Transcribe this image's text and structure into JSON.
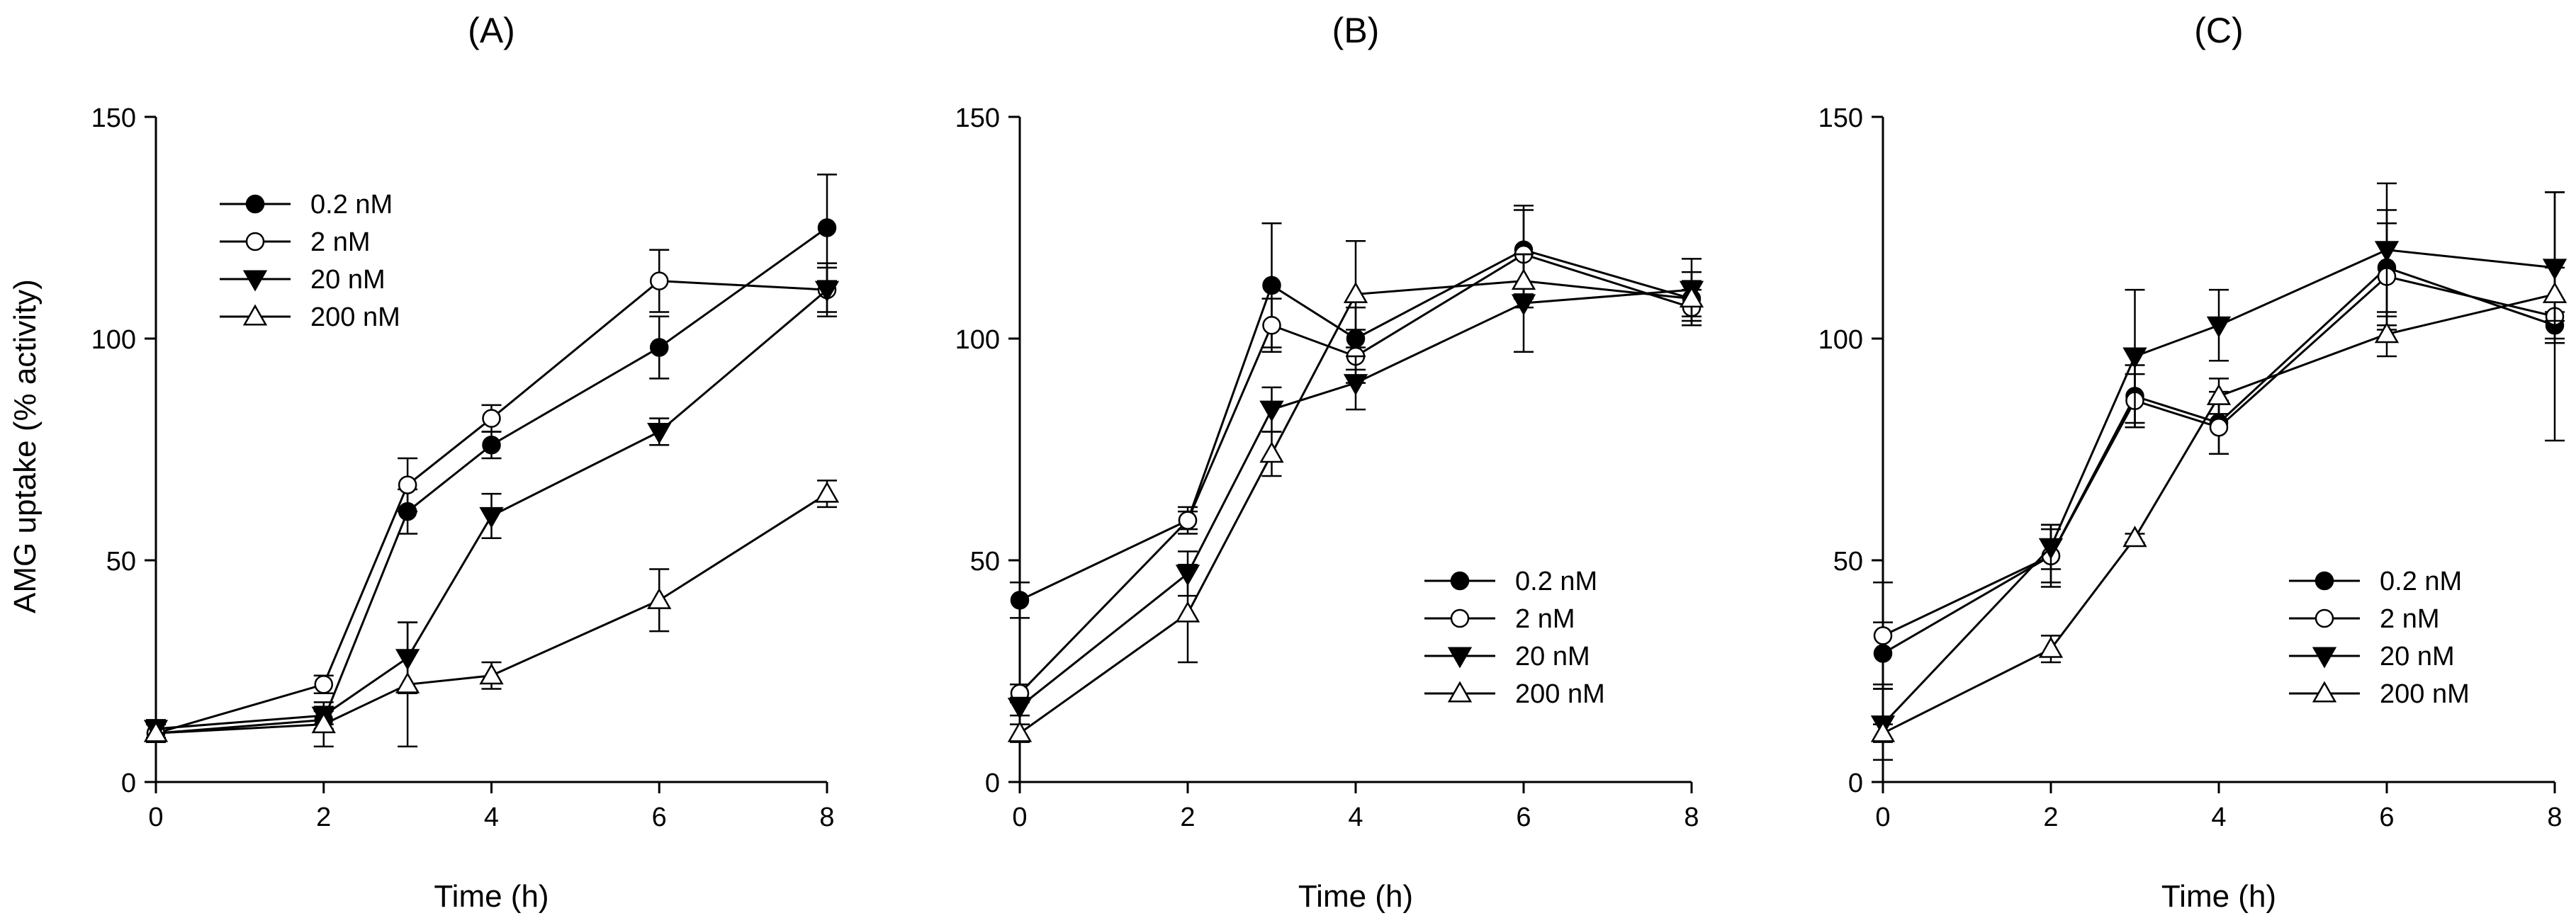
{
  "figure": {
    "ylabel": "AMG uptake (% activity)"
  },
  "chart_data": [
    {
      "type": "line",
      "title": "(A)",
      "xlabel": "Time (h)",
      "ylabel": "AMG uptake (% activity)",
      "xlim": [
        0,
        8
      ],
      "ylim": [
        0,
        150
      ],
      "xticks": [
        0,
        2,
        4,
        6,
        8
      ],
      "yticks": [
        0,
        50,
        100,
        150
      ],
      "legend_position": "top-left",
      "x": [
        0,
        2,
        3,
        4,
        6,
        8
      ],
      "series": [
        {
          "name": "0.2 nM",
          "marker": "filled-circle",
          "values": [
            11,
            14,
            61,
            76,
            98,
            125
          ],
          "errors": [
            2,
            2,
            5,
            3,
            7,
            12
          ]
        },
        {
          "name": "2 nM",
          "marker": "open-circle",
          "values": [
            11,
            22,
            67,
            82,
            113,
            111
          ],
          "errors": [
            2,
            2,
            6,
            3,
            7,
            6
          ]
        },
        {
          "name": "20 nM",
          "marker": "filled-triangle-down",
          "values": [
            12,
            15,
            28,
            60,
            79,
            111
          ],
          "errors": [
            2,
            2,
            8,
            5,
            3,
            5
          ]
        },
        {
          "name": "200 nM",
          "marker": "open-triangle-up",
          "values": [
            11,
            13,
            22,
            24,
            41,
            65
          ],
          "errors": [
            2,
            5,
            14,
            3,
            7,
            3
          ]
        }
      ]
    },
    {
      "type": "line",
      "title": "(B)",
      "xlabel": "Time (h)",
      "ylabel": "",
      "xlim": [
        0,
        8
      ],
      "ylim": [
        0,
        150
      ],
      "xticks": [
        0,
        2,
        4,
        6,
        8
      ],
      "yticks": [
        0,
        50,
        100,
        150
      ],
      "legend_position": "bottom-right",
      "x": [
        0,
        2,
        3,
        4,
        6,
        8
      ],
      "series": [
        {
          "name": "0.2 nM",
          "marker": "filled-circle",
          "values": [
            41,
            59,
            112,
            100,
            120,
            109
          ],
          "errors": [
            4,
            3,
            14,
            7,
            10,
            4
          ]
        },
        {
          "name": "2 nM",
          "marker": "open-circle",
          "values": [
            20,
            59,
            103,
            96,
            119,
            107
          ],
          "errors": [
            2,
            2,
            6,
            6,
            10,
            4
          ]
        },
        {
          "name": "20 nM",
          "marker": "filled-triangle-down",
          "values": [
            17,
            47,
            84,
            90,
            108,
            111
          ],
          "errors": [
            2,
            5,
            5,
            6,
            11,
            7
          ]
        },
        {
          "name": "200 nM",
          "marker": "open-triangle-up",
          "values": [
            11,
            38,
            74,
            110,
            113,
            109
          ],
          "errors": [
            2,
            11,
            5,
            12,
            6,
            6
          ]
        }
      ]
    },
    {
      "type": "line",
      "title": "(C)",
      "xlabel": "Time (h)",
      "ylabel": "",
      "xlim": [
        0,
        8
      ],
      "ylim": [
        0,
        150
      ],
      "xticks": [
        0,
        2,
        4,
        6,
        8
      ],
      "yticks": [
        0,
        50,
        100,
        150
      ],
      "legend_position": "bottom-right",
      "x": [
        0,
        2,
        3,
        4,
        6,
        8
      ],
      "series": [
        {
          "name": "0.2 nM",
          "marker": "filled-circle",
          "values": [
            29,
            51,
            87,
            81,
            116,
            103
          ],
          "errors": [
            7,
            7,
            7,
            7,
            13,
            3
          ]
        },
        {
          "name": "2 nM",
          "marker": "open-circle",
          "values": [
            33,
            51,
            86,
            80,
            114,
            105
          ],
          "errors": [
            12,
            6,
            6,
            6,
            12,
            28
          ]
        },
        {
          "name": "20 nM",
          "marker": "filled-triangle-down",
          "values": [
            13,
            53,
            96,
            103,
            120,
            116
          ],
          "errors": [
            8,
            5,
            15,
            8,
            15,
            17
          ]
        },
        {
          "name": "200 nM",
          "marker": "open-triangle-up",
          "values": [
            11,
            30,
            55,
            87,
            101,
            110
          ],
          "errors": [
            2,
            3,
            1,
            4,
            5,
            6
          ]
        }
      ]
    }
  ]
}
